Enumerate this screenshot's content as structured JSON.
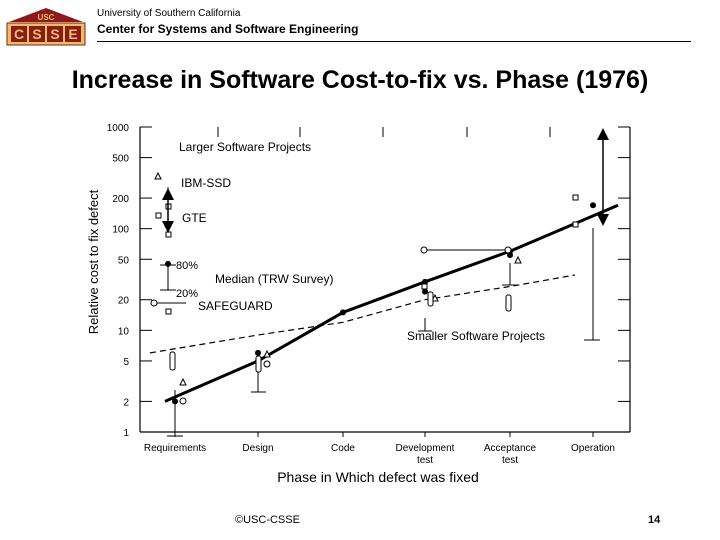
{
  "header": {
    "logo_text": "USC CSSE",
    "university": "University of Southern California",
    "center": "Center for Systems and Software Engineering"
  },
  "slide": {
    "title": "Increase in Software Cost-to-fix vs. Phase (1976)",
    "footer": "©USC-CSSE",
    "page_number": "14"
  },
  "colors": {
    "logo_red": "#8b1a1a",
    "logo_gold": "#e8c060"
  },
  "chart_data": {
    "type": "line",
    "xlabel": "Phase in Which defect was fixed",
    "ylabel": "Relative cost to fix defect",
    "y_scale": "log",
    "ylim": [
      1,
      1000
    ],
    "y_ticks": [
      1,
      2,
      5,
      10,
      20,
      50,
      100,
      200,
      500,
      1000
    ],
    "categories": [
      "Requirements",
      "Design",
      "Code",
      "Development test",
      "Acceptance test",
      "Operation"
    ],
    "series": [
      {
        "name": "Larger Software Projects",
        "style": "solid",
        "y": [
          2,
          5,
          15,
          30,
          60,
          170
        ]
      },
      {
        "name": "Smaller Software Projects",
        "style": "dashed",
        "y": [
          6,
          9,
          12,
          20,
          27,
          35
        ]
      }
    ],
    "annotations": {
      "larger": "Larger Software Projects",
      "smaller": "Smaller Software Projects",
      "ibm": "IBM-SSD",
      "gte": "GTE",
      "median": "Median (TRW Survey)",
      "safeguard": "SAFEGUARD",
      "p80": "80%",
      "p20": "20%"
    }
  }
}
